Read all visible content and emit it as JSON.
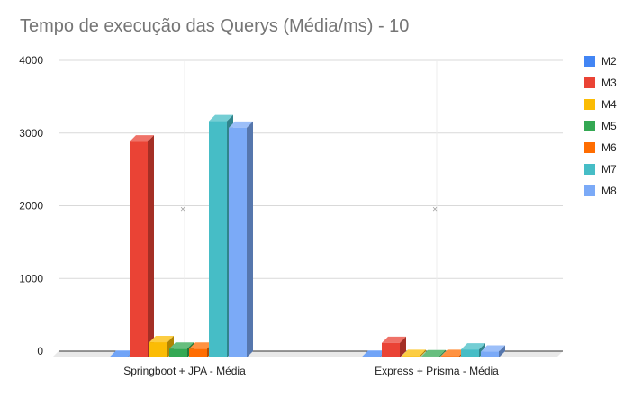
{
  "chart_data": {
    "type": "bar",
    "title": "Tempo de execução das Querys (Média/ms) - 10",
    "xlabel": "",
    "ylabel": "",
    "categories": [
      "Springboot + JPA - Média",
      "Express + Prisma - Média"
    ],
    "ylim": [
      0,
      4000
    ],
    "yticks": [
      0,
      1000,
      2000,
      3000,
      4000
    ],
    "grid": true,
    "legend_position": "right",
    "three_d": true,
    "series": [
      {
        "name": "M2",
        "color": "#4285f4",
        "values": [
          10,
          10
        ]
      },
      {
        "name": "M3",
        "color": "#ea4335",
        "values": [
          2970,
          200
        ]
      },
      {
        "name": "M4",
        "color": "#fbbc04",
        "values": [
          210,
          20
        ]
      },
      {
        "name": "M5",
        "color": "#34a853",
        "values": [
          120,
          15
        ]
      },
      {
        "name": "M6",
        "color": "#ff6d01",
        "values": [
          120,
          20
        ]
      },
      {
        "name": "M7",
        "color": "#46bdc6",
        "values": [
          3250,
          110
        ]
      },
      {
        "name": "M8",
        "color": "#7baaf7",
        "values": [
          3160,
          80
        ]
      }
    ]
  }
}
